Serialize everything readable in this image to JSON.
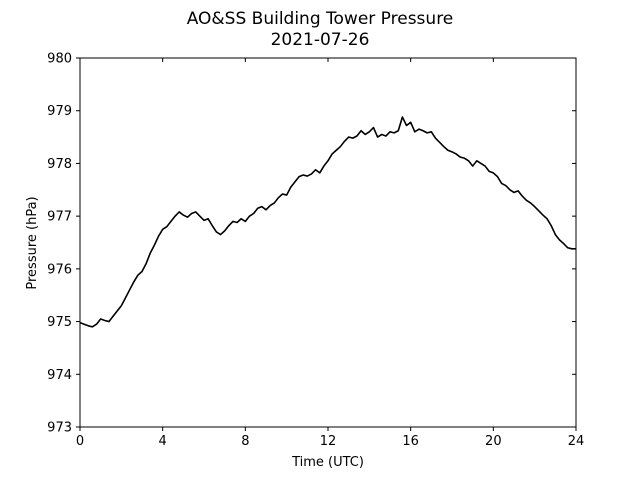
{
  "chart_data": {
    "type": "line",
    "title": "AO&SS Building Tower Pressure",
    "subtitle": "2021-07-26",
    "xlabel": "Time (UTC)",
    "ylabel": "Pressure (hPa)",
    "xlim": [
      0,
      24
    ],
    "ylim": [
      973,
      980
    ],
    "xticks": [
      0,
      4,
      8,
      12,
      16,
      20,
      24
    ],
    "yticks": [
      973,
      974,
      975,
      976,
      977,
      978,
      979,
      980
    ],
    "grid": false,
    "legend": "none",
    "line_color": "#000000",
    "series": [
      {
        "x": [
          0,
          0.2,
          0.4,
          0.6,
          0.8,
          1.0,
          1.2,
          1.4,
          1.6,
          1.8,
          2.0,
          2.2,
          2.4,
          2.6,
          2.8,
          3.0,
          3.2,
          3.4,
          3.6,
          3.8,
          4.0,
          4.2,
          4.4,
          4.6,
          4.8,
          5.0,
          5.2,
          5.4,
          5.6,
          5.8,
          6.0,
          6.2,
          6.4,
          6.6,
          6.8,
          7.0,
          7.2,
          7.4,
          7.6,
          7.8,
          8.0,
          8.2,
          8.4,
          8.6,
          8.8,
          9.0,
          9.2,
          9.4,
          9.6,
          9.8,
          10.0,
          10.2,
          10.4,
          10.6,
          10.8,
          11.0,
          11.2,
          11.4,
          11.6,
          11.8,
          12.0,
          12.2,
          12.4,
          12.6,
          12.8,
          13.0,
          13.2,
          13.4,
          13.6,
          13.8,
          14.0,
          14.2,
          14.4,
          14.6,
          14.8,
          15.0,
          15.2,
          15.4,
          15.6,
          15.8,
          16.0,
          16.2,
          16.4,
          16.6,
          16.8,
          17.0,
          17.2,
          17.4,
          17.6,
          17.8,
          18.0,
          18.2,
          18.4,
          18.6,
          18.8,
          19.0,
          19.2,
          19.4,
          19.6,
          19.8,
          20.0,
          20.2,
          20.4,
          20.6,
          20.8,
          21.0,
          21.2,
          21.4,
          21.6,
          21.8,
          22.0,
          22.2,
          22.4,
          22.6,
          22.8,
          23.0,
          23.2,
          23.4,
          23.6,
          23.8,
          24.0
        ],
        "values": [
          974.98,
          974.95,
          974.92,
          974.9,
          974.95,
          975.05,
          975.02,
          975.0,
          975.1,
          975.2,
          975.3,
          975.45,
          975.6,
          975.75,
          975.88,
          975.95,
          976.1,
          976.3,
          976.45,
          976.62,
          976.75,
          976.8,
          976.9,
          977.0,
          977.08,
          977.02,
          976.98,
          977.05,
          977.08,
          977.0,
          976.92,
          976.95,
          976.82,
          976.7,
          976.65,
          976.72,
          976.82,
          976.9,
          976.88,
          976.95,
          976.9,
          977.0,
          977.05,
          977.15,
          977.18,
          977.12,
          977.2,
          977.25,
          977.35,
          977.42,
          977.4,
          977.55,
          977.65,
          977.75,
          977.78,
          977.76,
          977.8,
          977.88,
          977.82,
          977.95,
          978.05,
          978.18,
          978.25,
          978.32,
          978.42,
          978.5,
          978.48,
          978.52,
          978.62,
          978.55,
          978.6,
          978.68,
          978.5,
          978.55,
          978.52,
          978.6,
          978.58,
          978.62,
          978.88,
          978.72,
          978.78,
          978.6,
          978.65,
          978.62,
          978.58,
          978.6,
          978.48,
          978.4,
          978.32,
          978.25,
          978.22,
          978.18,
          978.12,
          978.1,
          978.05,
          977.95,
          978.05,
          978.0,
          977.95,
          977.85,
          977.82,
          977.75,
          977.62,
          977.58,
          977.5,
          977.45,
          977.48,
          977.38,
          977.3,
          977.25,
          977.18,
          977.1,
          977.02,
          976.95,
          976.82,
          976.65,
          976.55,
          976.48,
          976.4,
          976.38,
          976.38
        ]
      }
    ]
  }
}
